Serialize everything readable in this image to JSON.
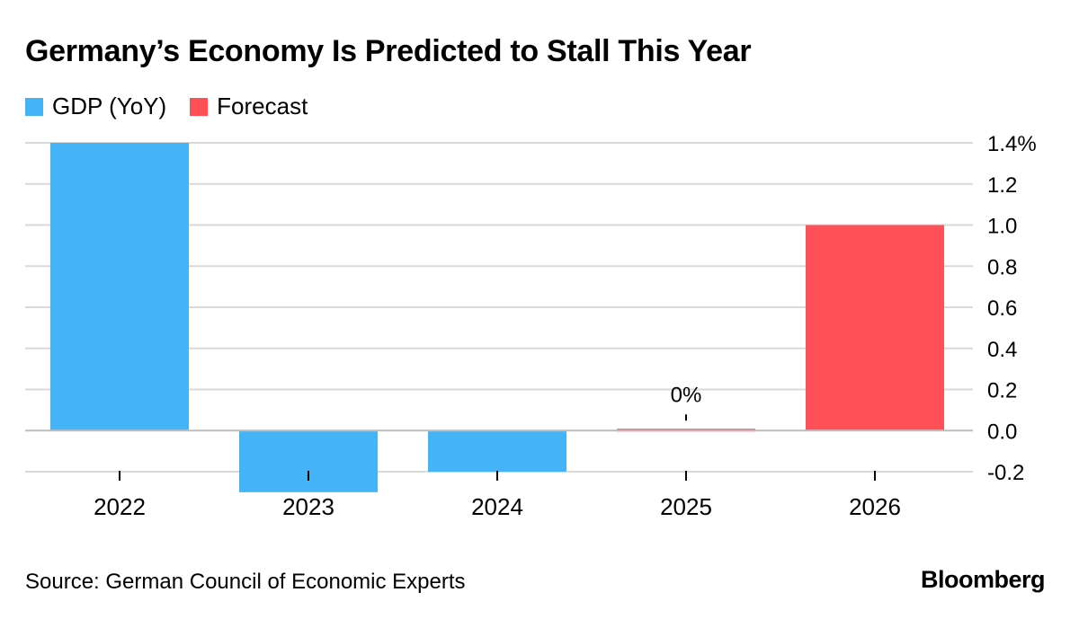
{
  "title": "Germany’s Economy Is Predicted to Stall This Year",
  "legend": {
    "items": [
      {
        "label": "GDP (YoY)",
        "color": "#45b4f7"
      },
      {
        "label": "Forecast",
        "color": "#ff5057"
      }
    ]
  },
  "source": "Source: German Council of Economic Experts",
  "brand": "Bloomberg",
  "chart_data": {
    "type": "bar",
    "title": "Germany’s Economy Is Predicted to Stall This Year",
    "categories": [
      "2022",
      "2023",
      "2024",
      "2025",
      "2026"
    ],
    "values": [
      1.4,
      -0.3,
      -0.2,
      0.0,
      1.0
    ],
    "series_type": [
      "GDP (YoY)",
      "GDP (YoY)",
      "GDP (YoY)",
      "Forecast",
      "Forecast"
    ],
    "colors": {
      "GDP (YoY)": "#45b4f7",
      "Forecast": "#ff5057"
    },
    "annotations": [
      {
        "category": "2025",
        "label": "0%"
      }
    ],
    "y_ticks": [
      1.4,
      1.2,
      1.0,
      0.8,
      0.6,
      0.4,
      0.2,
      0.0,
      -0.2
    ],
    "y_tick_labels": [
      "1.4%",
      "1.2",
      "1.0",
      "0.8",
      "0.6",
      "0.4",
      "0.2",
      "0.0",
      "-0.2"
    ],
    "ylim": [
      -0.2,
      1.4
    ],
    "xlabel": "",
    "ylabel": "",
    "grid": true,
    "axis_position": "right"
  }
}
